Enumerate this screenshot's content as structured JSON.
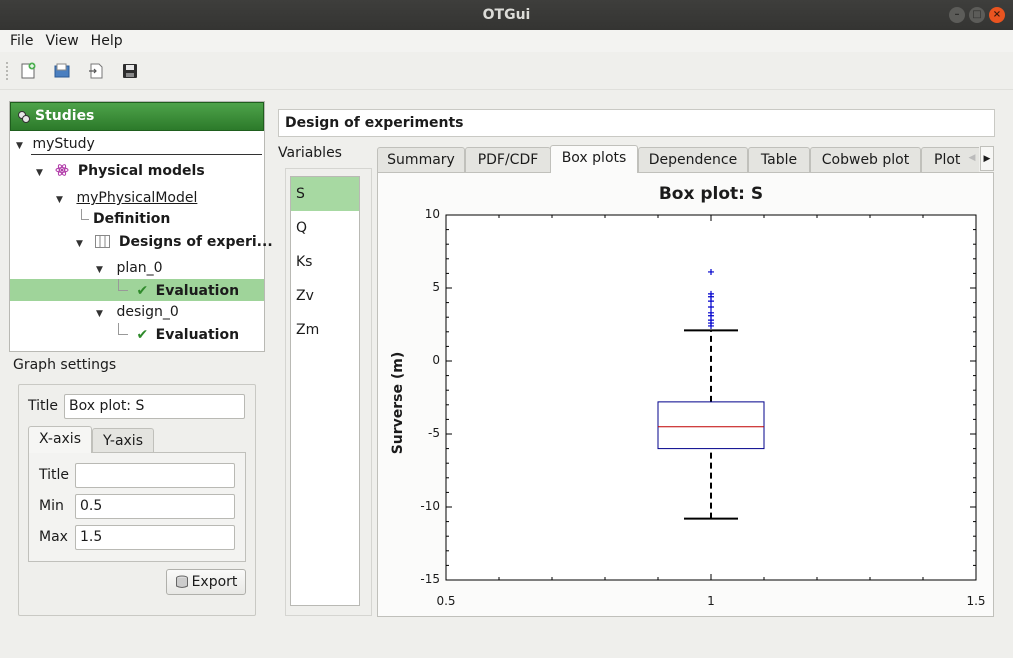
{
  "window": {
    "title": "OTGui"
  },
  "menu": {
    "file": "File",
    "view": "View",
    "help": "Help"
  },
  "studies": {
    "header": "Studies",
    "study": "myStudy",
    "physical_models": "Physical models",
    "model": "myPhysicalModel",
    "definition": "Definition",
    "designs": "Designs of experi...",
    "plan": "plan_0",
    "plan_eval": "Evaluation",
    "design": "design_0",
    "design_eval": "Evaluation"
  },
  "graph_settings": {
    "label": "Graph settings",
    "title_label": "Title",
    "title_value": "Box plot: S",
    "tabs": [
      "X-axis",
      "Y-axis"
    ],
    "axis_title_label": "Title",
    "axis_title_value": "",
    "min_label": "Min",
    "min_value": "0.5",
    "max_label": "Max",
    "max_value": "1.5",
    "export": "Export"
  },
  "main": {
    "title": "Design of experiments",
    "variables_label": "Variables",
    "variables": [
      "S",
      "Q",
      "Ks",
      "Zv",
      "Zm"
    ],
    "tabs": [
      "Summary",
      "PDF/CDF",
      "Box plots",
      "Dependence",
      "Table",
      "Cobweb plot",
      "Plot"
    ]
  },
  "chart_data": {
    "type": "boxplot",
    "title": "Box plot: S",
    "xlabel": "",
    "ylabel": "Surverse (m)",
    "xlim": [
      0.5,
      1.5
    ],
    "ylim": [
      -15,
      10
    ],
    "xticks": [
      "0.5",
      "1",
      "1.5"
    ],
    "yticks": [
      "10",
      "5",
      "0",
      "-5",
      "-10",
      "-15"
    ],
    "boxes": [
      {
        "x": 1,
        "whisker_low": -10.8,
        "q1": -6.0,
        "median": -4.5,
        "q3": -2.8,
        "whisker_high": 2.1,
        "outliers": [
          2.4,
          2.6,
          2.8,
          3.1,
          3.3,
          3.7,
          4.1,
          4.4,
          4.6,
          6.1
        ]
      }
    ],
    "colors": {
      "box": "#00008b",
      "median": "#c00000",
      "whisker": "#000000",
      "outlier": "#0000cc"
    }
  }
}
